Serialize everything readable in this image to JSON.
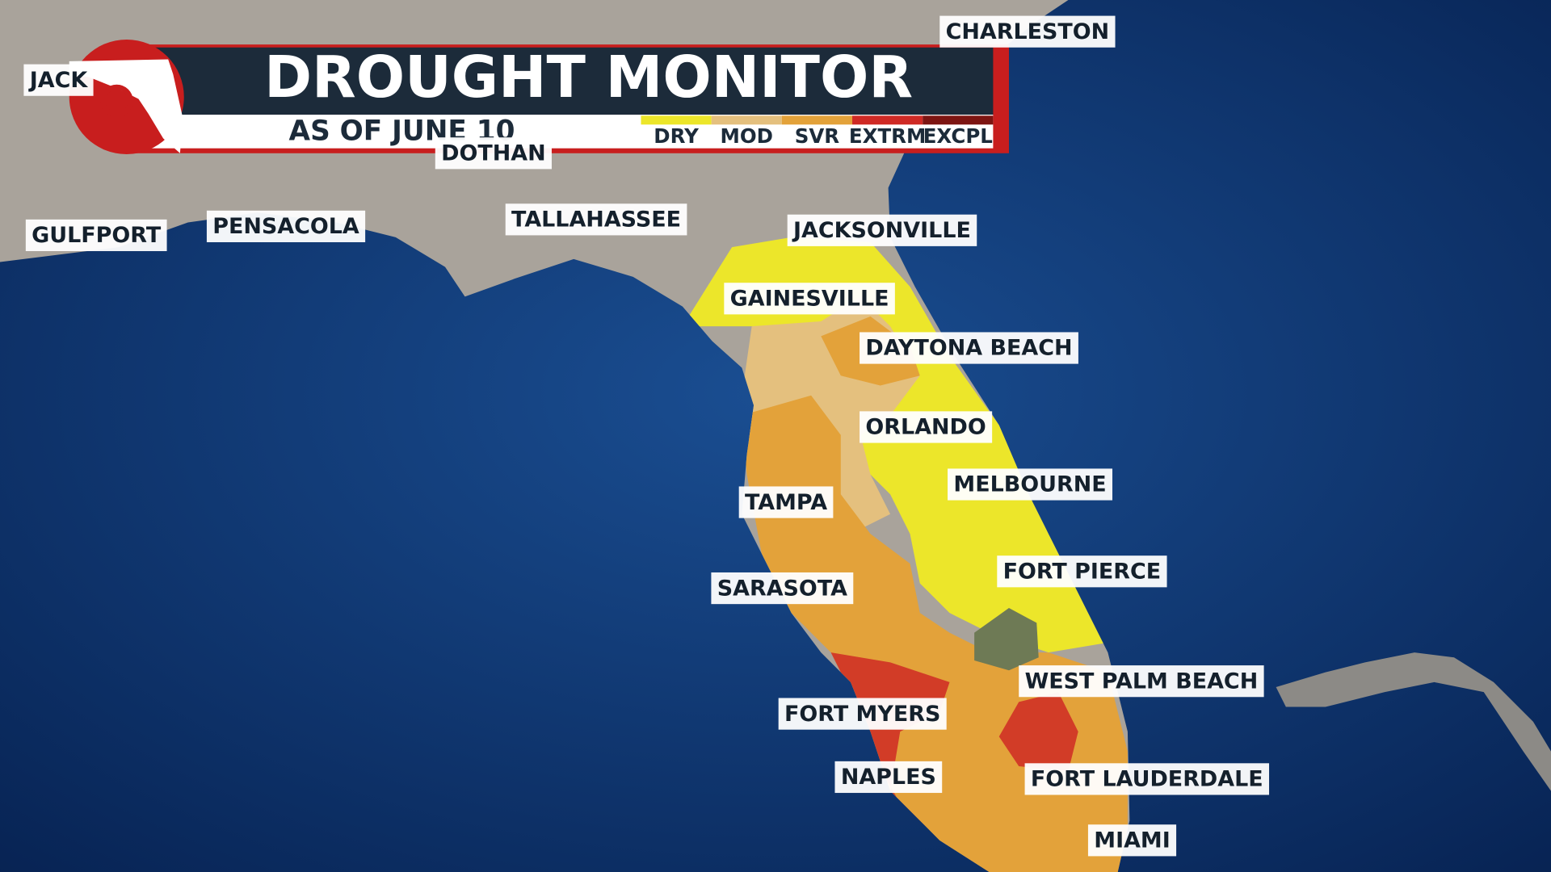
{
  "header": {
    "title": "DROUGHT MONITOR",
    "subtitle": "AS OF JUNE 10"
  },
  "legend": [
    {
      "label": "DRY",
      "color": "#ece62a"
    },
    {
      "label": "MOD",
      "color": "#e4c07e"
    },
    {
      "label": "SVR",
      "color": "#e3a23a"
    },
    {
      "label": "EXTRM",
      "color": "#cf2a25"
    },
    {
      "label": "EXCPL",
      "color": "#7d1512"
    }
  ],
  "cities": [
    {
      "name": "CHARLESTON"
    },
    {
      "name": "JACK"
    },
    {
      "name": "DOTHAN"
    },
    {
      "name": "GULFPORT"
    },
    {
      "name": "PENSACOLA"
    },
    {
      "name": "TALLAHASSEE"
    },
    {
      "name": "JACKSONVILLE"
    },
    {
      "name": "GAINESVILLE"
    },
    {
      "name": "DAYTONA BEACH"
    },
    {
      "name": "ORLANDO"
    },
    {
      "name": "MELBOURNE"
    },
    {
      "name": "TAMPA"
    },
    {
      "name": "FORT PIERCE"
    },
    {
      "name": "SARASOTA"
    },
    {
      "name": "WEST PALM BEACH"
    },
    {
      "name": "FORT MYERS"
    },
    {
      "name": "NAPLES"
    },
    {
      "name": "FORT LAUDERDALE"
    },
    {
      "name": "MIAMI"
    }
  ]
}
